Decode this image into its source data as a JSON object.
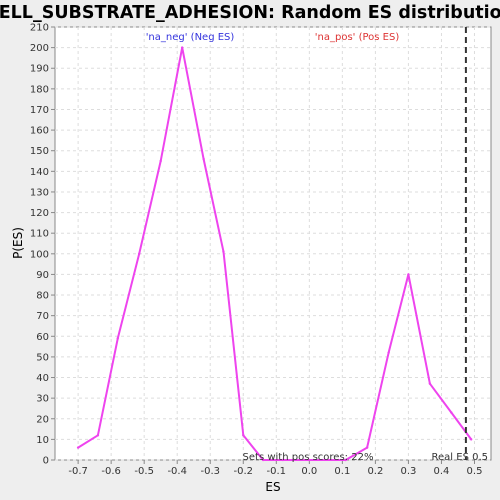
{
  "chart_data": {
    "type": "line",
    "title": "CELL_SUBSTRATE_ADHESION: Random ES distribution",
    "xlabel": "ES",
    "ylabel": "P(ES)",
    "xlim": [
      -0.77,
      0.55
    ],
    "ylim": [
      0,
      210
    ],
    "x_ticks": [
      -0.7,
      -0.6,
      -0.5,
      -0.4,
      -0.3,
      -0.2,
      -0.1,
      0.0,
      0.1,
      0.2,
      0.3,
      0.4,
      0.5
    ],
    "x_tick_labels": [
      "-0.7",
      "-0.6",
      "-0.5",
      "-0.4",
      "-0.3",
      "-0.2",
      "-0.1",
      "0.0",
      "0.1",
      "0.2",
      "0.3",
      "0.4",
      "0.5"
    ],
    "y_ticks": [
      0,
      10,
      20,
      30,
      40,
      50,
      60,
      70,
      80,
      90,
      100,
      110,
      120,
      130,
      140,
      150,
      160,
      170,
      180,
      190,
      200,
      210
    ],
    "y_tick_labels": [
      "0",
      "10",
      "20",
      "30",
      "40",
      "50",
      "60",
      "70",
      "80",
      "90",
      "100",
      "110",
      "120",
      "130",
      "140",
      "150",
      "160",
      "170",
      "180",
      "190",
      "200",
      "210"
    ],
    "grid": true,
    "series": [
      {
        "color": "#ee44ee",
        "x": [
          -0.7,
          -0.64,
          -0.58,
          -0.515,
          -0.45,
          -0.385,
          -0.32,
          -0.26,
          -0.2,
          -0.14,
          -0.08,
          0.0,
          0.11,
          0.175,
          0.24,
          0.3,
          0.365,
          0.43,
          0.49
        ],
        "y": [
          6,
          12,
          59,
          100,
          145,
          200,
          146,
          101,
          12,
          0,
          0,
          0,
          0,
          6,
          52,
          90,
          37,
          23,
          10
        ]
      }
    ],
    "real_es": {
      "x": 0.474,
      "label": "Real ES 0.5",
      "color": "#333333"
    },
    "annotations": {
      "neg_label": "'na_neg' (Neg ES)",
      "pos_label": "'na_pos' (Pos ES)",
      "pos_scores": "Sets with pos scores: 22%"
    },
    "colors": {
      "neg_label": "#3333dd",
      "pos_label": "#dd3333",
      "grid": "#dddddd",
      "plot_bg": "#ffffff",
      "page_bg": "#eeeeee"
    }
  }
}
